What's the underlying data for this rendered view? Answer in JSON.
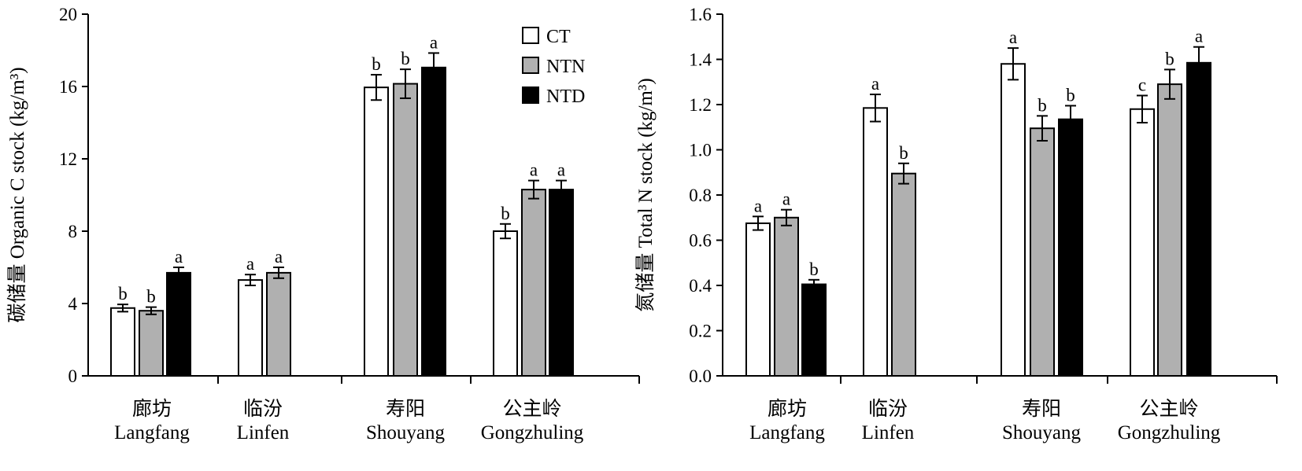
{
  "chart_data": [
    {
      "type": "bar",
      "ylabel": "碳储量 Organic C stock (kg/m³)",
      "ylim": [
        0,
        20
      ],
      "yticks": [
        "0",
        "4",
        "8",
        "12",
        "16",
        "20"
      ],
      "ytick_values": [
        0,
        4,
        8,
        12,
        16,
        20
      ],
      "categories": [
        {
          "zh": "廊坊",
          "en": "Langfang"
        },
        {
          "zh": "临汾",
          "en": "Linfen"
        },
        {
          "zh": "寿阳",
          "en": "Shouyang"
        },
        {
          "zh": "公主岭",
          "en": "Gongzhuling"
        }
      ],
      "series": [
        {
          "name": "CT",
          "values": [
            3.75,
            5.3,
            15.95,
            8.0
          ],
          "errors": [
            0.2,
            0.3,
            0.7,
            0.4
          ],
          "labels": [
            "b",
            "a",
            "b",
            "b"
          ]
        },
        {
          "name": "NTN",
          "values": [
            3.6,
            5.7,
            16.15,
            10.3
          ],
          "errors": [
            0.2,
            0.3,
            0.8,
            0.5
          ],
          "labels": [
            "b",
            "a",
            "b",
            "a"
          ]
        },
        {
          "name": "NTD",
          "values": [
            5.7,
            null,
            17.05,
            10.3
          ],
          "errors": [
            0.3,
            null,
            0.8,
            0.5
          ],
          "labels": [
            "a",
            null,
            "a",
            "a"
          ]
        }
      ],
      "legend": {
        "position": "top-right",
        "entries": [
          "CT",
          "NTN",
          "NTD"
        ]
      }
    },
    {
      "type": "bar",
      "ylabel": "氮储量 Total N stock (kg/m³)",
      "ylim": [
        0,
        1.6
      ],
      "yticks": [
        "0.0",
        "0.2",
        "0.4",
        "0.6",
        "0.8",
        "1.0",
        "1.2",
        "1.4",
        "1.6"
      ],
      "ytick_values": [
        0,
        0.2,
        0.4,
        0.6,
        0.8,
        1.0,
        1.2,
        1.4,
        1.6
      ],
      "categories": [
        {
          "zh": "廊坊",
          "en": "Langfang"
        },
        {
          "zh": "临汾",
          "en": "Linfen"
        },
        {
          "zh": "寿阳",
          "en": "Shouyang"
        },
        {
          "zh": "公主岭",
          "en": "Gongzhuling"
        }
      ],
      "series": [
        {
          "name": "CT",
          "values": [
            0.675,
            1.185,
            1.38,
            1.18
          ],
          "errors": [
            0.03,
            0.06,
            0.07,
            0.06
          ],
          "labels": [
            "a",
            "a",
            "a",
            "c"
          ]
        },
        {
          "name": "NTN",
          "values": [
            0.7,
            0.895,
            1.095,
            1.29
          ],
          "errors": [
            0.035,
            0.045,
            0.055,
            0.065
          ],
          "labels": [
            "a",
            "b",
            "b",
            "b"
          ]
        },
        {
          "name": "NTD",
          "values": [
            0.405,
            null,
            1.135,
            1.385
          ],
          "errors": [
            0.02,
            null,
            0.06,
            0.07
          ],
          "labels": [
            "b",
            null,
            "b",
            "a"
          ]
        }
      ]
    }
  ],
  "colors": {
    "CT": "#ffffff",
    "NTN": "#b0b0b0",
    "NTD": "#000000",
    "stroke": "#000000"
  }
}
